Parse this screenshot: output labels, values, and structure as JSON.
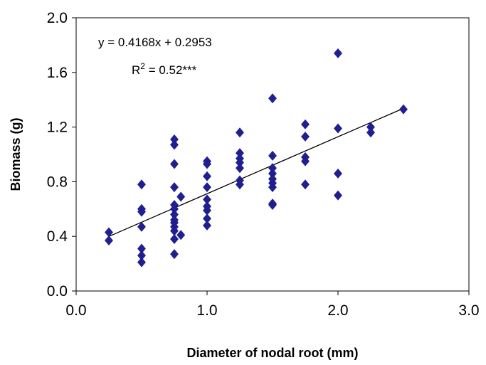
{
  "chart_data": {
    "type": "scatter",
    "xlabel": "Diameter of nodal root (mm)",
    "ylabel": "Biomass (g)",
    "xlim": [
      0,
      3
    ],
    "ylim": [
      0,
      2
    ],
    "x_ticks": [
      "0.0",
      "1.0",
      "2.0",
      "3.0"
    ],
    "x_tick_values": [
      0,
      1,
      2,
      3
    ],
    "y_ticks": [
      "0.0",
      "0.4",
      "0.8",
      "1.2",
      "1.6",
      "2.0"
    ],
    "y_tick_values": [
      0,
      0.4,
      0.8,
      1.2,
      1.6,
      2.0
    ],
    "marker_color": "#1f1f8f",
    "grid": false,
    "legend": false,
    "annotations": {
      "equation": "y = 0.4168x + 0.2953",
      "r2_prefix": "R",
      "r2_sup": "2",
      "r2_suffix": " = 0.52***"
    },
    "trendline": {
      "slope": 0.4168,
      "intercept": 0.2953,
      "x_range": [
        0.25,
        2.5
      ]
    },
    "points": [
      {
        "x": 0.25,
        "y": 0.43
      },
      {
        "x": 0.25,
        "y": 0.37
      },
      {
        "x": 0.5,
        "y": 0.78
      },
      {
        "x": 0.5,
        "y": 0.6
      },
      {
        "x": 0.5,
        "y": 0.58
      },
      {
        "x": 0.5,
        "y": 0.47
      },
      {
        "x": 0.5,
        "y": 0.31
      },
      {
        "x": 0.5,
        "y": 0.26
      },
      {
        "x": 0.5,
        "y": 0.21
      },
      {
        "x": 0.75,
        "y": 1.11
      },
      {
        "x": 0.75,
        "y": 1.07
      },
      {
        "x": 0.75,
        "y": 0.93
      },
      {
        "x": 0.75,
        "y": 0.76
      },
      {
        "x": 0.75,
        "y": 0.63
      },
      {
        "x": 0.75,
        "y": 0.6
      },
      {
        "x": 0.75,
        "y": 0.56
      },
      {
        "x": 0.75,
        "y": 0.52
      },
      {
        "x": 0.75,
        "y": 0.5
      },
      {
        "x": 0.75,
        "y": 0.47
      },
      {
        "x": 0.75,
        "y": 0.44
      },
      {
        "x": 0.75,
        "y": 0.38
      },
      {
        "x": 0.75,
        "y": 0.27
      },
      {
        "x": 0.8,
        "y": 0.69
      },
      {
        "x": 0.8,
        "y": 0.41
      },
      {
        "x": 1.0,
        "y": 0.95
      },
      {
        "x": 1.0,
        "y": 0.93
      },
      {
        "x": 1.0,
        "y": 0.84
      },
      {
        "x": 1.0,
        "y": 0.76
      },
      {
        "x": 1.0,
        "y": 0.67
      },
      {
        "x": 1.0,
        "y": 0.62
      },
      {
        "x": 1.0,
        "y": 0.59
      },
      {
        "x": 1.0,
        "y": 0.53
      },
      {
        "x": 1.0,
        "y": 0.48
      },
      {
        "x": 1.25,
        "y": 1.16
      },
      {
        "x": 1.25,
        "y": 1.01
      },
      {
        "x": 1.25,
        "y": 0.97
      },
      {
        "x": 1.25,
        "y": 0.94
      },
      {
        "x": 1.25,
        "y": 0.9
      },
      {
        "x": 1.25,
        "y": 0.81
      },
      {
        "x": 1.25,
        "y": 0.78
      },
      {
        "x": 1.5,
        "y": 1.41
      },
      {
        "x": 1.5,
        "y": 0.99
      },
      {
        "x": 1.5,
        "y": 0.9
      },
      {
        "x": 1.5,
        "y": 0.86
      },
      {
        "x": 1.5,
        "y": 0.82
      },
      {
        "x": 1.5,
        "y": 0.79
      },
      {
        "x": 1.5,
        "y": 0.76
      },
      {
        "x": 1.5,
        "y": 0.64
      },
      {
        "x": 1.5,
        "y": 0.63
      },
      {
        "x": 1.75,
        "y": 1.22
      },
      {
        "x": 1.75,
        "y": 1.13
      },
      {
        "x": 1.75,
        "y": 0.98
      },
      {
        "x": 1.75,
        "y": 0.95
      },
      {
        "x": 1.75,
        "y": 0.78
      },
      {
        "x": 2.0,
        "y": 1.74
      },
      {
        "x": 2.0,
        "y": 1.19
      },
      {
        "x": 2.0,
        "y": 0.86
      },
      {
        "x": 2.0,
        "y": 0.7
      },
      {
        "x": 2.25,
        "y": 1.2
      },
      {
        "x": 2.25,
        "y": 1.16
      },
      {
        "x": 2.5,
        "y": 1.33
      }
    ]
  }
}
